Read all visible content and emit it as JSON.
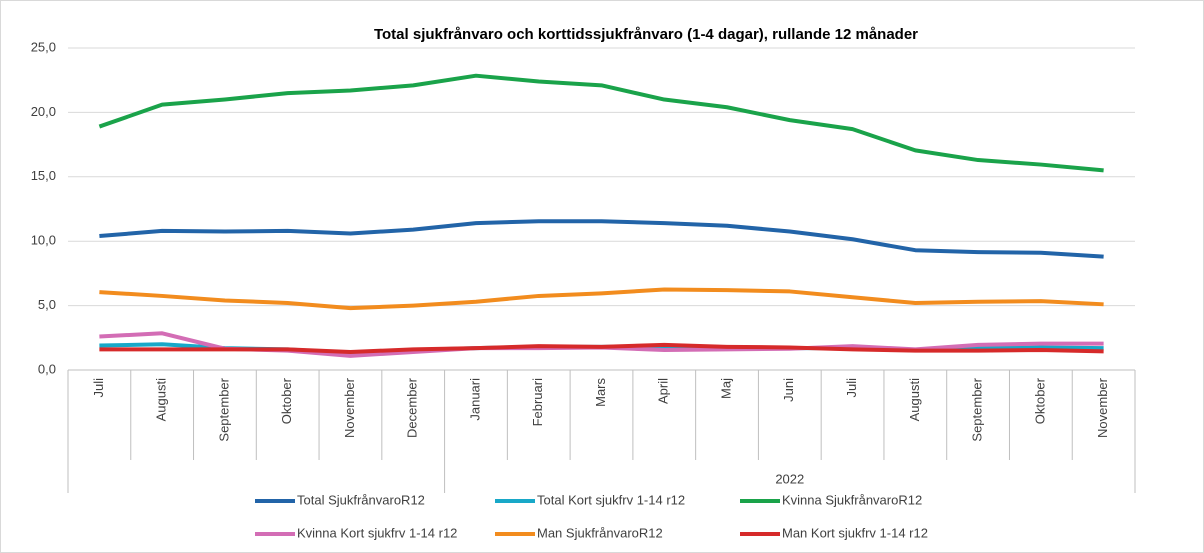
{
  "chart_data": {
    "type": "line",
    "title": "Total sjukfrånvaro och korttidssjukfrånvaro (1-4 dagar), rullande 12 månader",
    "categories": [
      "Juli",
      "Augusti",
      "September",
      "Oktober",
      "November",
      "December",
      "Januari",
      "Februari",
      "Mars",
      "April",
      "Maj",
      "Juni",
      "Juli",
      "Augusti",
      "September",
      "Oktober",
      "November"
    ],
    "category_group": [
      null,
      null,
      null,
      null,
      null,
      null,
      "2022",
      "2022",
      "2022",
      "2022",
      "2022",
      "2022",
      "2022",
      "2022",
      "2022",
      "2022",
      "2022"
    ],
    "series": [
      {
        "name": "Total SjukfrånvaroR12",
        "color": "#2264a8",
        "values": [
          10.4,
          10.8,
          10.75,
          10.8,
          10.6,
          10.9,
          11.4,
          11.55,
          11.55,
          11.4,
          11.2,
          10.75,
          10.15,
          9.3,
          9.15,
          9.1,
          8.8
        ]
      },
      {
        "name": "Total Kort sjukfrv 1-14 r12",
        "color": "#18a8c8",
        "values": [
          1.9,
          2.0,
          1.7,
          1.6,
          1.3,
          1.55,
          1.7,
          1.8,
          1.8,
          1.85,
          1.75,
          1.7,
          1.7,
          1.55,
          1.7,
          1.75,
          1.7
        ]
      },
      {
        "name": "Kvinna SjukfrånvaroR12",
        "color": "#1aa34a",
        "values": [
          18.9,
          20.6,
          21.0,
          21.5,
          21.7,
          22.1,
          22.85,
          22.4,
          22.1,
          21.0,
          20.4,
          19.4,
          18.7,
          17.05,
          16.3,
          15.95,
          15.5
        ]
      },
      {
        "name": "Kvinna Kort sjukfrv 1-14 r12",
        "color": "#d36db5",
        "values": [
          2.6,
          2.85,
          1.65,
          1.5,
          1.1,
          1.4,
          1.7,
          1.7,
          1.75,
          1.55,
          1.6,
          1.65,
          1.85,
          1.6,
          1.95,
          2.05,
          2.05
        ]
      },
      {
        "name": "Man SjukfrånvaroR12",
        "color": "#f28c1e",
        "values": [
          6.05,
          5.75,
          5.4,
          5.2,
          4.8,
          5.0,
          5.3,
          5.75,
          5.95,
          6.25,
          6.2,
          6.1,
          5.65,
          5.2,
          5.3,
          5.35,
          5.1
        ]
      },
      {
        "name": "Man Kort sjukfrv 1-14 r12",
        "color": "#d62a2a",
        "values": [
          1.6,
          1.6,
          1.6,
          1.6,
          1.4,
          1.6,
          1.7,
          1.85,
          1.8,
          1.95,
          1.8,
          1.75,
          1.6,
          1.5,
          1.5,
          1.55,
          1.45
        ]
      }
    ],
    "ylim": [
      0,
      25
    ],
    "yticks": [
      {
        "value": 0,
        "label": "0,0"
      },
      {
        "value": 5,
        "label": "5,0"
      },
      {
        "value": 10,
        "label": "10,0"
      },
      {
        "value": 15,
        "label": "15,0"
      },
      {
        "value": 20,
        "label": "20,0"
      },
      {
        "value": 25,
        "label": "25,0"
      }
    ],
    "grid": true,
    "legend": "bottom"
  }
}
